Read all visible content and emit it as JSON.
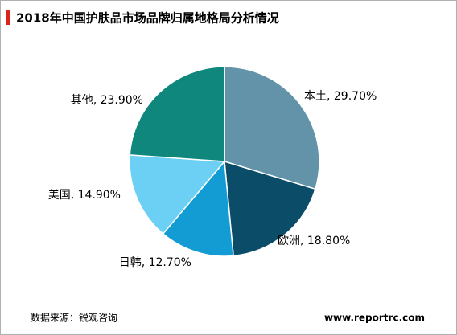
{
  "chart_data": {
    "type": "pie",
    "title": "2018年中国护肤品市场品牌归属地格局分析情况",
    "values": [
      29.7,
      18.8,
      12.7,
      14.9,
      23.9
    ],
    "value_labels": [
      "本土, 29.70%",
      "欧洲, 18.80%",
      "日韩, 12.70%",
      "美国, 14.90%",
      "其他, 23.90%"
    ],
    "colors": [
      "#6293a9",
      "#0b4d69",
      "#139bd4",
      "#6ccff4",
      "#0f877c"
    ],
    "source": "数据来源：锐观咨询",
    "website": "www.reportrc.com"
  }
}
